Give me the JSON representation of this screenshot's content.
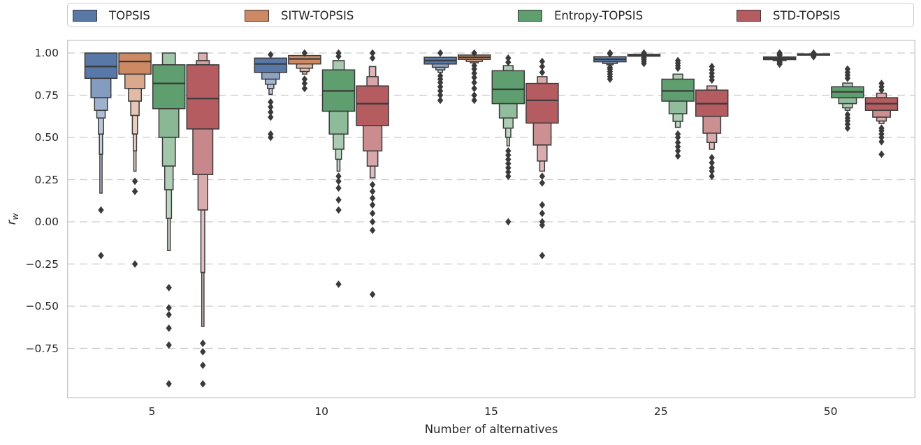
{
  "chart_data": {
    "type": "boxen",
    "title": "",
    "xlabel": "Number of alternatives",
    "ylabel": "r_w",
    "categories": [
      "5",
      "10",
      "15",
      "25",
      "50"
    ],
    "yticks": [
      1.0,
      0.75,
      0.5,
      0.25,
      0.0,
      -0.25,
      -0.5,
      -0.75
    ],
    "ylim": [
      -1.05,
      1.08
    ],
    "grid": "horizontal-dashed",
    "legend_position": "top",
    "gridline_color": "#cccccc",
    "edge_color": "#3a3a3a",
    "series": [
      {
        "name": "TOPSIS",
        "color": "#5878A8",
        "groups": [
          {
            "category": "5",
            "median": 0.92,
            "boxes": [
              [
                0.85,
                1.0,
                1.0
              ],
              [
                0.735,
                0.85,
                0.62
              ],
              [
                0.66,
                0.735,
                0.4
              ],
              [
                0.615,
                0.66,
                0.26
              ],
              [
                0.52,
                0.615,
                0.16
              ],
              [
                0.4,
                0.52,
                0.1
              ],
              [
                0.17,
                0.4,
                0.06
              ]
            ],
            "outliers": [
              0.07,
              -0.2
            ]
          },
          {
            "category": "10",
            "median": 0.935,
            "boxes": [
              [
                0.885,
                0.97,
                1.0
              ],
              [
                0.845,
                0.885,
                0.55
              ],
              [
                0.815,
                0.845,
                0.33
              ],
              [
                0.79,
                0.815,
                0.2
              ],
              [
                0.755,
                0.79,
                0.1
              ]
            ],
            "outliers": [
              0.99,
              0.71,
              0.68,
              0.65,
              0.62,
              0.52,
              0.5
            ]
          },
          {
            "category": "15",
            "median": 0.955,
            "boxes": [
              [
                0.935,
                0.975,
                1.0
              ],
              [
                0.915,
                0.935,
                0.5
              ],
              [
                0.9,
                0.915,
                0.28
              ],
              [
                0.885,
                0.9,
                0.14
              ]
            ],
            "outliers": [
              1.0,
              0.865,
              0.845,
              0.825,
              0.8,
              0.775,
              0.75,
              0.72
            ]
          },
          {
            "category": "25",
            "median": 0.963,
            "boxes": [
              [
                0.948,
                0.978,
                1.0
              ],
              [
                0.938,
                0.948,
                0.45
              ],
              [
                0.93,
                0.938,
                0.2
              ]
            ],
            "outliers": [
              1.0,
              0.995,
              0.915,
              0.905,
              0.89,
              0.875,
              0.86,
              0.845
            ]
          },
          {
            "category": "50",
            "median": 0.969,
            "boxes": [
              [
                0.961,
                0.977,
                1.0
              ],
              [
                0.956,
                0.961,
                0.4
              ]
            ],
            "outliers": [
              1.0,
              0.993,
              0.987,
              0.948,
              0.941,
              0.934
            ]
          }
        ]
      },
      {
        "name": "SITW-TOPSIS",
        "color": "#CC8963",
        "groups": [
          {
            "category": "5",
            "median": 0.95,
            "boxes": [
              [
                0.875,
                1.0,
                1.0
              ],
              [
                0.79,
                0.875,
                0.62
              ],
              [
                0.715,
                0.79,
                0.4
              ],
              [
                0.63,
                0.715,
                0.26
              ],
              [
                0.52,
                0.63,
                0.16
              ],
              [
                0.42,
                0.52,
                0.1
              ],
              [
                0.3,
                0.42,
                0.06
              ]
            ],
            "outliers": [
              0.24,
              0.18,
              -0.25
            ]
          },
          {
            "category": "10",
            "median": 0.965,
            "boxes": [
              [
                0.935,
                0.985,
                1.0
              ],
              [
                0.91,
                0.935,
                0.5
              ],
              [
                0.89,
                0.91,
                0.28
              ],
              [
                0.875,
                0.89,
                0.14
              ]
            ],
            "outliers": [
              1.0,
              0.845,
              0.82,
              0.79
            ]
          },
          {
            "category": "15",
            "median": 0.975,
            "boxes": [
              [
                0.962,
                0.988,
                1.0
              ],
              [
                0.95,
                0.962,
                0.5
              ],
              [
                0.942,
                0.95,
                0.25
              ]
            ],
            "outliers": [
              1.0,
              0.925,
              0.905,
              0.88,
              0.855,
              0.825,
              0.79,
              0.75,
              0.72
            ]
          },
          {
            "category": "25",
            "median": 0.987,
            "boxes": [
              [
                0.981,
                0.992,
                1.0
              ]
            ],
            "outliers": [
              1.0,
              0.997,
              0.972,
              0.962,
              0.95,
              0.938
            ]
          },
          {
            "category": "50",
            "median": 0.991,
            "boxes": [
              [
                0.987,
                0.995,
                1.0
              ]
            ],
            "outliers": [
              1.0,
              0.982,
              0.978
            ]
          }
        ]
      },
      {
        "name": "Entropy-TOPSIS",
        "color": "#5F9E6E",
        "groups": [
          {
            "category": "5",
            "median": 0.82,
            "boxes": [
              [
                0.93,
                1.0,
                0.4
              ],
              [
                0.67,
                0.93,
                1.0
              ],
              [
                0.5,
                0.67,
                0.62
              ],
              [
                0.33,
                0.5,
                0.4
              ],
              [
                0.19,
                0.33,
                0.26
              ],
              [
                0.02,
                0.19,
                0.16
              ],
              [
                -0.17,
                0.02,
                0.08
              ]
            ],
            "outliers": [
              -0.39,
              -0.51,
              -0.55,
              -0.63,
              -0.73,
              -0.96
            ]
          },
          {
            "category": "10",
            "median": 0.775,
            "boxes": [
              [
                0.9,
                0.955,
                0.35
              ],
              [
                0.655,
                0.9,
                1.0
              ],
              [
                0.52,
                0.655,
                0.58
              ],
              [
                0.43,
                0.52,
                0.33
              ],
              [
                0.37,
                0.43,
                0.18
              ],
              [
                0.3,
                0.37,
                0.09
              ]
            ],
            "outliers": [
              1.0,
              0.98,
              0.27,
              0.24,
              0.2,
              0.13,
              0.07,
              -0.37
            ]
          },
          {
            "category": "15",
            "median": 0.785,
            "boxes": [
              [
                0.895,
                0.925,
                0.3
              ],
              [
                0.7,
                0.895,
                1.0
              ],
              [
                0.615,
                0.7,
                0.55
              ],
              [
                0.555,
                0.615,
                0.3
              ],
              [
                0.5,
                0.555,
                0.16
              ],
              [
                0.45,
                0.5,
                0.08
              ]
            ],
            "outliers": [
              0.97,
              0.945,
              0.42,
              0.395,
              0.37,
              0.345,
              0.32,
              0.295,
              0.27,
              0.0
            ]
          },
          {
            "category": "25",
            "median": 0.775,
            "boxes": [
              [
                0.845,
                0.875,
                0.3
              ],
              [
                0.715,
                0.845,
                1.0
              ],
              [
                0.64,
                0.715,
                0.55
              ],
              [
                0.595,
                0.64,
                0.3
              ],
              [
                0.56,
                0.595,
                0.15
              ]
            ],
            "outliers": [
              0.955,
              0.94,
              0.925,
              0.91,
              0.52,
              0.5,
              0.47,
              0.445,
              0.42,
              0.39
            ]
          },
          {
            "category": "50",
            "median": 0.77,
            "boxes": [
              [
                0.8,
                0.822,
                0.3
              ],
              [
                0.735,
                0.8,
                1.0
              ],
              [
                0.7,
                0.735,
                0.55
              ],
              [
                0.675,
                0.7,
                0.3
              ],
              [
                0.66,
                0.675,
                0.15
              ]
            ],
            "outliers": [
              0.905,
              0.885,
              0.868,
              0.85,
              0.635,
              0.615,
              0.598,
              0.578,
              0.555
            ]
          }
        ]
      },
      {
        "name": "STD-TOPSIS",
        "color": "#B45C60",
        "groups": [
          {
            "category": "5",
            "median": 0.73,
            "boxes": [
              [
                0.955,
                1.0,
                0.26
              ],
              [
                0.93,
                0.955,
                0.4
              ],
              [
                0.55,
                0.93,
                1.0
              ],
              [
                0.28,
                0.55,
                0.62
              ],
              [
                0.07,
                0.28,
                0.3
              ],
              [
                -0.3,
                0.07,
                0.12
              ],
              [
                -0.62,
                -0.3,
                0.06
              ]
            ],
            "outliers": [
              -0.72,
              -0.77,
              -0.85,
              -0.96
            ]
          },
          {
            "category": "10",
            "median": 0.7,
            "boxes": [
              [
                0.86,
                0.92,
                0.2
              ],
              [
                0.805,
                0.86,
                0.35
              ],
              [
                0.57,
                0.805,
                1.0
              ],
              [
                0.42,
                0.57,
                0.58
              ],
              [
                0.33,
                0.42,
                0.33
              ],
              [
                0.26,
                0.33,
                0.15
              ]
            ],
            "outliers": [
              1.0,
              0.97,
              0.22,
              0.18,
              0.14,
              0.1,
              0.05,
              0.0,
              -0.05,
              -0.43
            ]
          },
          {
            "category": "15",
            "median": 0.72,
            "boxes": [
              [
                0.82,
                0.86,
                0.3
              ],
              [
                0.585,
                0.82,
                1.0
              ],
              [
                0.455,
                0.585,
                0.55
              ],
              [
                0.36,
                0.455,
                0.3
              ],
              [
                0.3,
                0.36,
                0.15
              ]
            ],
            "outliers": [
              0.95,
              0.92,
              0.885,
              0.27,
              0.23,
              0.1,
              0.05,
              0.0,
              -0.02,
              -0.2
            ]
          },
          {
            "category": "25",
            "median": 0.7,
            "boxes": [
              [
                0.78,
                0.805,
                0.3
              ],
              [
                0.625,
                0.78,
                1.0
              ],
              [
                0.525,
                0.625,
                0.55
              ],
              [
                0.47,
                0.525,
                0.3
              ],
              [
                0.43,
                0.47,
                0.15
              ]
            ],
            "outliers": [
              0.92,
              0.9,
              0.88,
              0.86,
              0.84,
              0.38,
              0.35,
              0.32,
              0.3,
              0.27
            ]
          },
          {
            "category": "50",
            "median": 0.7,
            "boxes": [
              [
                0.735,
                0.762,
                0.3
              ],
              [
                0.66,
                0.735,
                1.0
              ],
              [
                0.62,
                0.66,
                0.55
              ],
              [
                0.597,
                0.62,
                0.3
              ],
              [
                0.582,
                0.597,
                0.15
              ]
            ],
            "outliers": [
              0.82,
              0.8,
              0.78,
              0.555,
              0.54,
              0.52,
              0.5,
              0.475,
              0.4
            ]
          }
        ]
      }
    ]
  }
}
